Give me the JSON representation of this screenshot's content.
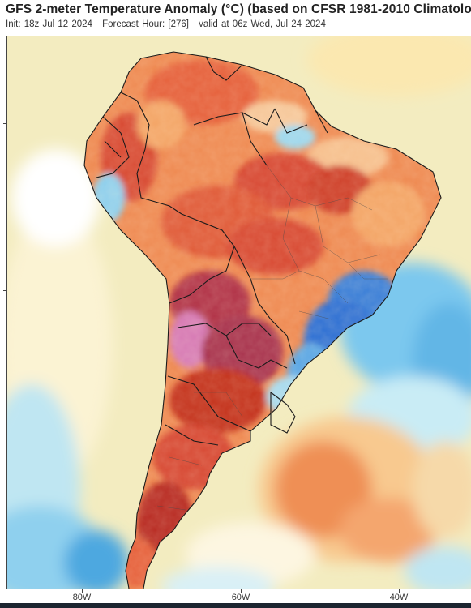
{
  "header": {
    "title": "GFS 2-meter Temperature Anomaly (°C) (based on CFSR 1981-2010 Climatolo",
    "init": "Init: 18z Jul 12 2024",
    "forecast_hour": "Forecast Hour: [276]",
    "valid": "valid at 06z Wed, Jul 24 2024"
  },
  "axis": {
    "lon_labels": [
      "80W",
      "60W",
      "40W"
    ]
  },
  "colors": {
    "ocean_base": "#f3ecc0",
    "warm_light": "#f6b36e",
    "warm": "#e8643a",
    "warm_dark": "#c4331f",
    "very_warm": "#a8304e",
    "extreme_warm": "#d77ab5",
    "cool_light": "#b7e3f0",
    "cool": "#62b6e6",
    "cool_dark": "#2f6fd4",
    "border": "#1b1b1b"
  }
}
